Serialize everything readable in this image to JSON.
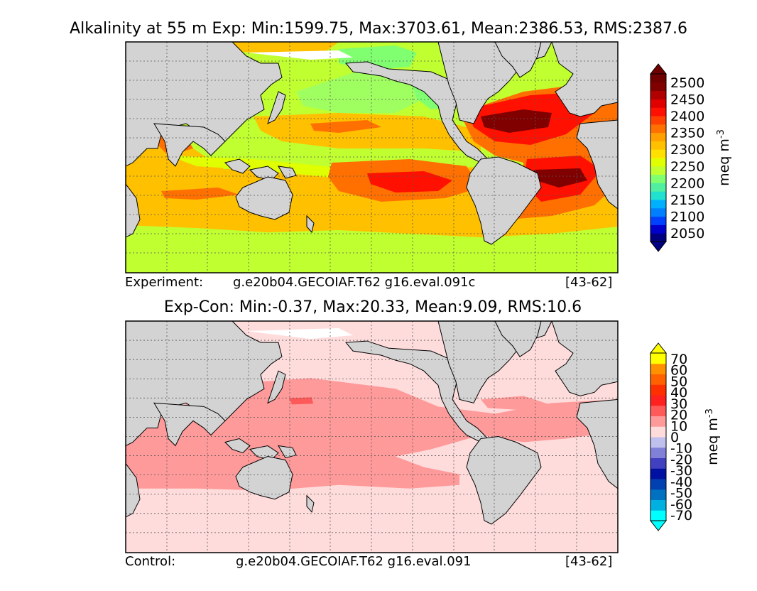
{
  "chart_data": [
    {
      "type": "heatmap",
      "title": "Alkalinity at 55 m Exp: Min:1599.75, Max:3703.61, Mean:2386.53, RMS:2387.6",
      "footer": {
        "label": "Experiment:",
        "run": "g.e20b04.GECOIAF.T62 g16.eval.091c",
        "years": "[43-62]"
      },
      "colorbar": {
        "units": "meq m^-3",
        "ticks": [
          "2050",
          "2100",
          "2150",
          "2200",
          "2250",
          "2300",
          "2350",
          "2400",
          "2450",
          "2500"
        ],
        "levels": [
          2025,
          2050,
          2075,
          2100,
          2125,
          2150,
          2175,
          2200,
          2225,
          2250,
          2275,
          2300,
          2325,
          2350,
          2375,
          2400,
          2425,
          2450,
          2475,
          2500,
          2525
        ],
        "colors": [
          "#000080",
          "#0000cd",
          "#0040ff",
          "#0080ff",
          "#00b0ff",
          "#20e0d0",
          "#50f0a0",
          "#80ff70",
          "#c0ff30",
          "#e0ff00",
          "#ffe000",
          "#ffc000",
          "#ffa000",
          "#ff7000",
          "#ff4000",
          "#ff1000",
          "#e00000",
          "#b00000",
          "#800000",
          "#700000"
        ],
        "extend": "both"
      },
      "grid": true,
      "map": "global ocean, Pacific-centered"
    },
    {
      "type": "heatmap",
      "title": "Exp-Con: Min:-0.37, Max:20.33, Mean:9.09, RMS:10.6",
      "footer": {
        "label": "Control:",
        "run": "g.e20b04.GECOIAF.T62 g16.eval.091",
        "years": "[43-62]"
      },
      "colorbar": {
        "units": "meq m^-3",
        "ticks": [
          "-70",
          "-60",
          "-50",
          "-40",
          "-30",
          "-20",
          "-10",
          "0",
          "10",
          "20",
          "30",
          "40",
          "50",
          "60",
          "70"
        ],
        "colors": [
          "#00ffff",
          "#00b0e0",
          "#0070c0",
          "#0040b0",
          "#0010a0",
          "#4040c0",
          "#8080d8",
          "#c0c0ee",
          "#ffdcdc",
          "#ff9a9a",
          "#ff5a5a",
          "#ff2020",
          "#ff3000",
          "#ff6000",
          "#ff9000",
          "#ffff00"
        ],
        "extend": "both"
      },
      "grid": true,
      "map": "global ocean, Pacific-centered"
    }
  ]
}
